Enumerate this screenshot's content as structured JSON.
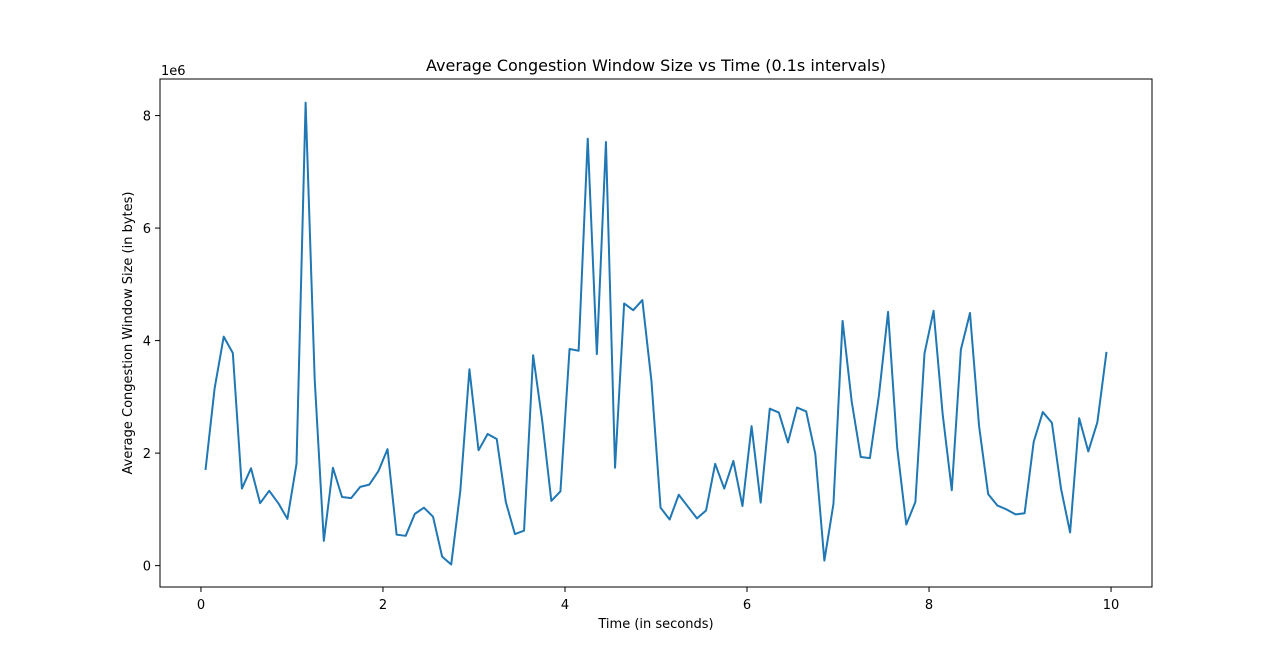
{
  "chart_data": {
    "type": "line",
    "title": "Average Congestion Window Size vs Time (0.1s intervals)",
    "xlabel": "Time (in seconds)",
    "ylabel": "Average Congestion Window Size (in bytes)",
    "y_offset_label": "1e6",
    "y_scale": 1000000,
    "xlim": [
      -0.45,
      10.45
    ],
    "ylim": [
      -380000,
      8650000
    ],
    "x_ticks": [
      0,
      2,
      4,
      6,
      8,
      10
    ],
    "x_tick_labels": [
      "0",
      "2",
      "4",
      "6",
      "8",
      "10"
    ],
    "y_ticks": [
      0,
      2000000,
      4000000,
      6000000,
      8000000
    ],
    "y_tick_labels": [
      "0",
      "2",
      "4",
      "6",
      "8"
    ],
    "grid": false,
    "series": [
      {
        "name": "Average Congestion Window Size",
        "color": "#1f77b4",
        "x": [
          0.05,
          0.15,
          0.25,
          0.35,
          0.45,
          0.55,
          0.65,
          0.75,
          0.85,
          0.95,
          1.05,
          1.15,
          1.25,
          1.35,
          1.45,
          1.55,
          1.65,
          1.75,
          1.85,
          1.95,
          2.05,
          2.15,
          2.25,
          2.35,
          2.45,
          2.55,
          2.65,
          2.75,
          2.85,
          2.95,
          3.05,
          3.15,
          3.25,
          3.35,
          3.45,
          3.55,
          3.65,
          3.75,
          3.85,
          3.95,
          4.05,
          4.15,
          4.25,
          4.35,
          4.45,
          4.55,
          4.65,
          4.75,
          4.85,
          4.95,
          5.05,
          5.15,
          5.25,
          5.35,
          5.45,
          5.55,
          5.65,
          5.75,
          5.85,
          5.95,
          6.05,
          6.15,
          6.25,
          6.35,
          6.45,
          6.55,
          6.65,
          6.75,
          6.85,
          6.95,
          7.05,
          7.15,
          7.25,
          7.35,
          7.45,
          7.55,
          7.65,
          7.75,
          7.85,
          7.95,
          8.05,
          8.15,
          8.25,
          8.35,
          8.45,
          8.55,
          8.65,
          8.75,
          8.85,
          8.95,
          9.05,
          9.15,
          9.25,
          9.35,
          9.45,
          9.55,
          9.65,
          9.75,
          9.85,
          9.95
        ],
        "y": [
          1700000,
          3150000,
          4070000,
          3780000,
          1370000,
          1730000,
          1110000,
          1330000,
          1110000,
          830000,
          1810000,
          8230000,
          3300000,
          440000,
          1740000,
          1220000,
          1200000,
          1400000,
          1440000,
          1680000,
          2070000,
          550000,
          530000,
          920000,
          1030000,
          870000,
          160000,
          20000,
          1330000,
          3490000,
          2050000,
          2340000,
          2250000,
          1130000,
          560000,
          620000,
          3740000,
          2570000,
          1150000,
          1320000,
          3850000,
          3820000,
          7590000,
          3760000,
          7530000,
          1740000,
          4660000,
          4540000,
          4720000,
          3280000,
          1030000,
          820000,
          1260000,
          1050000,
          840000,
          980000,
          1810000,
          1370000,
          1860000,
          1060000,
          2480000,
          1120000,
          2790000,
          2720000,
          2190000,
          2810000,
          2740000,
          1990000,
          90000,
          1100000,
          4350000,
          2920000,
          1930000,
          1910000,
          3030000,
          4510000,
          2100000,
          730000,
          1130000,
          3770000,
          4530000,
          2690000,
          1340000,
          3840000,
          4490000,
          2480000,
          1270000,
          1070000,
          1000000,
          910000,
          930000,
          2200000,
          2730000,
          2540000,
          1370000,
          590000,
          2620000,
          2030000,
          2550000,
          3800000
        ]
      }
    ]
  }
}
